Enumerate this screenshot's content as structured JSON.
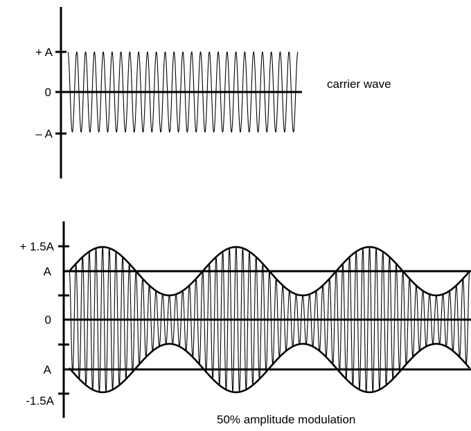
{
  "carrier": {
    "label": "carrier wave",
    "y_labels": [
      "+ A",
      "0",
      "– A"
    ],
    "amplitude": 1,
    "cycles": 26
  },
  "modulated": {
    "label": "50% amplitude modulation",
    "y_labels": [
      "+ 1.5A",
      "A",
      "0",
      "A",
      "-1.5A"
    ],
    "carrier_amplitude": 1,
    "modulation_depth": 0.5,
    "envelope_cycles": 3,
    "carrier_cycles": 60
  }
}
